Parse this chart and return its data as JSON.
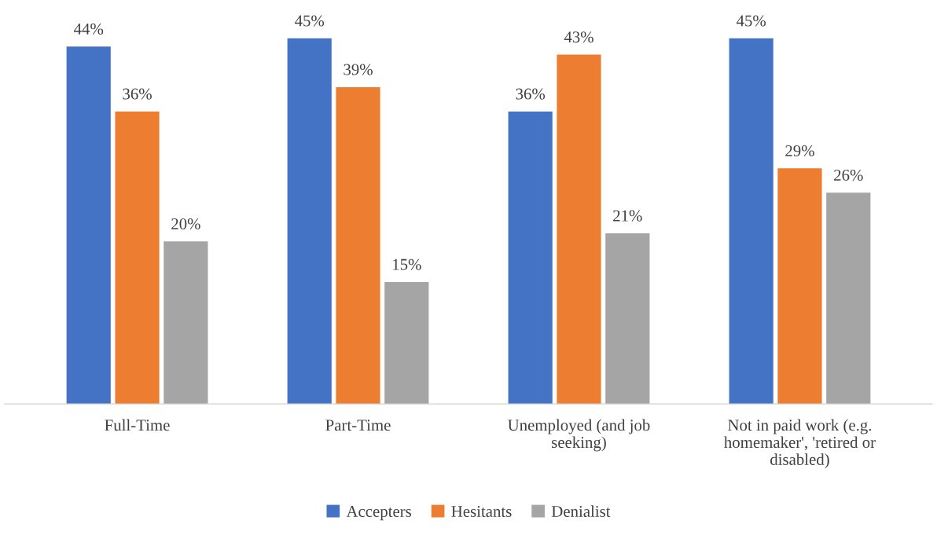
{
  "chart_data": {
    "type": "bar",
    "categories": [
      "Full-Time",
      "Part-Time",
      "Unemployed (and job\nseeking)",
      "Not in paid work (e.g.\nhomemaker', 'retired or\ndisabled)"
    ],
    "series": [
      {
        "name": "Accepters",
        "color": "#4472c4",
        "values": [
          44,
          45,
          36,
          45
        ],
        "value_labels": [
          "44%",
          "45%",
          "36%",
          "45%"
        ]
      },
      {
        "name": "Hesitants",
        "color": "#ed7d31",
        "values": [
          36,
          39,
          43,
          29
        ],
        "value_labels": [
          "36%",
          "39%",
          "43%",
          "29%"
        ]
      },
      {
        "name": "Denialist",
        "color": "#a5a5a5",
        "values": [
          20,
          15,
          21,
          26
        ],
        "value_labels": [
          "20%",
          "15%",
          "21%",
          "26%"
        ]
      }
    ],
    "tick_labels": "x",
    "legend": "bottom",
    "grid": false
  }
}
